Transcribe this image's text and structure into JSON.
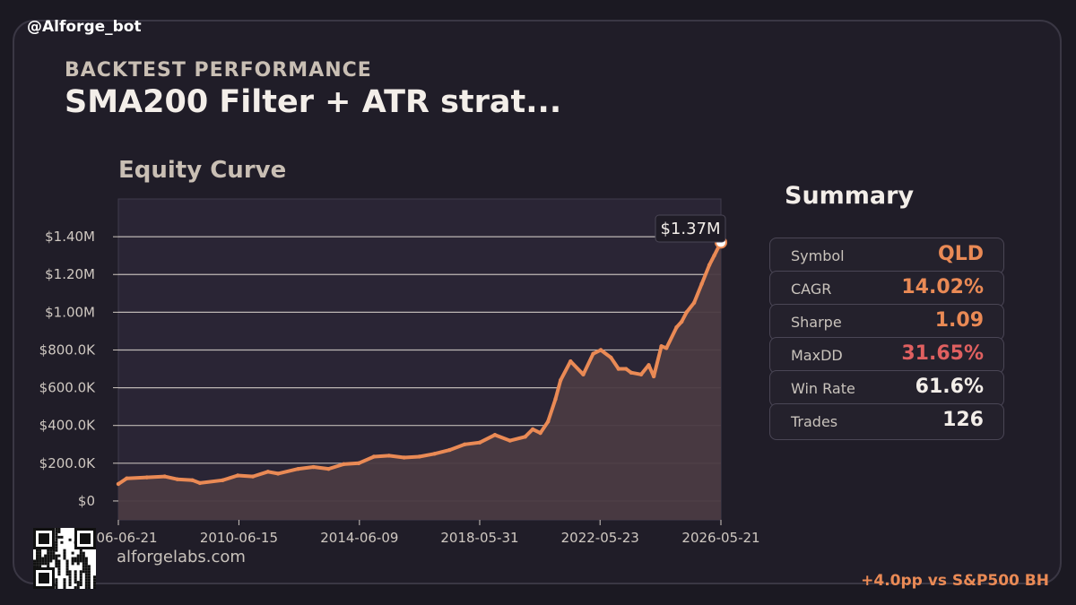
{
  "handle": "@Alforge_bot",
  "header": {
    "kicker": "BACKTEST PERFORMANCE",
    "title": "SMA200 Filter + ATR strat..."
  },
  "colors": {
    "accent": "#ea8a55",
    "danger": "#e06060",
    "text": "#f3eee9",
    "plot_bg": "#2a2535",
    "area_fill": "#4a3a42"
  },
  "chart_data": {
    "type": "area",
    "title": "Equity Curve",
    "xlabel": "",
    "ylabel": "",
    "grid": true,
    "ylim": [
      -100000,
      1600000
    ],
    "xlim": [
      "2006-06-21",
      "2026-05-21"
    ],
    "y_ticks": [
      0,
      200000,
      400000,
      600000,
      800000,
      1000000,
      1200000,
      1400000
    ],
    "y_tick_labels": [
      "$0",
      "$200.0K",
      "$400.0K",
      "$600.0K",
      "$800.0K",
      "$1.00M",
      "$1.20M",
      "$1.40M"
    ],
    "x_ticks": [
      "2006-06-21",
      "2010-06-15",
      "2014-06-09",
      "2018-05-31",
      "2022-05-23",
      "2026-05-21"
    ],
    "x_tick_labels": [
      "2006-06-21",
      "2010-06-15",
      "2014-06-09",
      "2018-05-31",
      "2022-05-23",
      "2026-05-21"
    ],
    "annotation": "$1.37M",
    "series": [
      {
        "x": [
          "2006-06-21",
          "2006-10-01",
          "2007-06-01",
          "2008-01-01",
          "2008-06-01",
          "2008-12-01",
          "2009-03-01",
          "2009-12-01",
          "2010-06-01",
          "2010-12-01",
          "2011-06-01",
          "2011-10-01",
          "2012-06-01",
          "2012-12-01",
          "2013-06-01",
          "2013-12-01",
          "2014-06-01",
          "2014-12-01",
          "2015-06-01",
          "2015-12-01",
          "2016-06-01",
          "2016-12-01",
          "2017-06-01",
          "2017-12-01",
          "2018-06-01",
          "2018-12-01",
          "2019-06-01",
          "2019-12-01",
          "2020-03-01",
          "2020-06-01",
          "2020-09-01",
          "2020-12-01",
          "2021-02-01",
          "2021-06-01",
          "2021-11-01",
          "2022-03-01",
          "2022-06-01",
          "2022-10-01",
          "2023-01-01",
          "2023-04-01",
          "2023-06-01",
          "2023-10-01",
          "2024-01-01",
          "2024-03-01",
          "2024-06-01",
          "2024-08-01",
          "2024-12-01",
          "2025-02-01",
          "2025-04-01",
          "2025-07-01",
          "2025-10-01",
          "2026-01-01",
          "2026-03-01",
          "2026-05-21"
        ],
        "y": [
          90000,
          120000,
          125000,
          130000,
          115000,
          110000,
          95000,
          110000,
          135000,
          130000,
          155000,
          145000,
          170000,
          180000,
          170000,
          195000,
          200000,
          235000,
          240000,
          230000,
          235000,
          250000,
          270000,
          300000,
          310000,
          350000,
          320000,
          340000,
          380000,
          360000,
          420000,
          540000,
          640000,
          740000,
          670000,
          780000,
          800000,
          760000,
          700000,
          700000,
          680000,
          670000,
          720000,
          660000,
          820000,
          810000,
          920000,
          950000,
          1000000,
          1050000,
          1150000,
          1250000,
          1300000,
          1370000
        ]
      }
    ]
  },
  "summary": {
    "title": "Summary",
    "metrics": [
      {
        "label": "Symbol",
        "value": "QLD",
        "tone": "accent"
      },
      {
        "label": "CAGR",
        "value": "14.02%",
        "tone": "accent"
      },
      {
        "label": "Sharpe",
        "value": "1.09",
        "tone": "accent"
      },
      {
        "label": "MaxDD",
        "value": "31.65%",
        "tone": "danger"
      },
      {
        "label": "Win Rate",
        "value": "61.6%",
        "tone": "text"
      },
      {
        "label": "Trades",
        "value": "126",
        "tone": "text"
      }
    ]
  },
  "footer": {
    "domain": "alforgelabs.com",
    "comparison": "+4.0pp vs S&P500 BH"
  }
}
